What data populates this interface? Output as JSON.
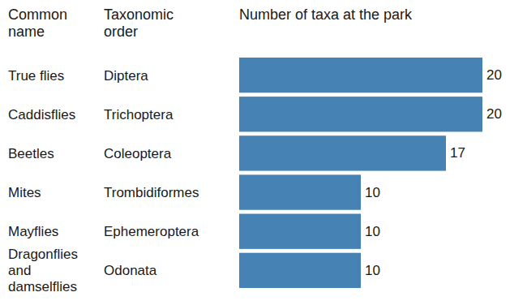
{
  "chart_data": {
    "type": "bar",
    "orientation": "horizontal",
    "xlabel": "Number of taxa at the park",
    "column_headers": [
      "Common name",
      "Taxonomic order"
    ],
    "categories": [
      "True flies",
      "Caddisflies",
      "Beetles",
      "Mites",
      "Mayflies",
      "Dragonflies and damselflies"
    ],
    "orders": [
      "Diptera",
      "Trichoptera",
      "Coleoptera",
      "Trombidiformes",
      "Ephemeroptera",
      "Odonata"
    ],
    "values": [
      20,
      20,
      17,
      10,
      10,
      10
    ],
    "color": "#4682b4",
    "xlim": [
      0,
      20
    ],
    "data_labels": true,
    "tick_labels": false
  }
}
